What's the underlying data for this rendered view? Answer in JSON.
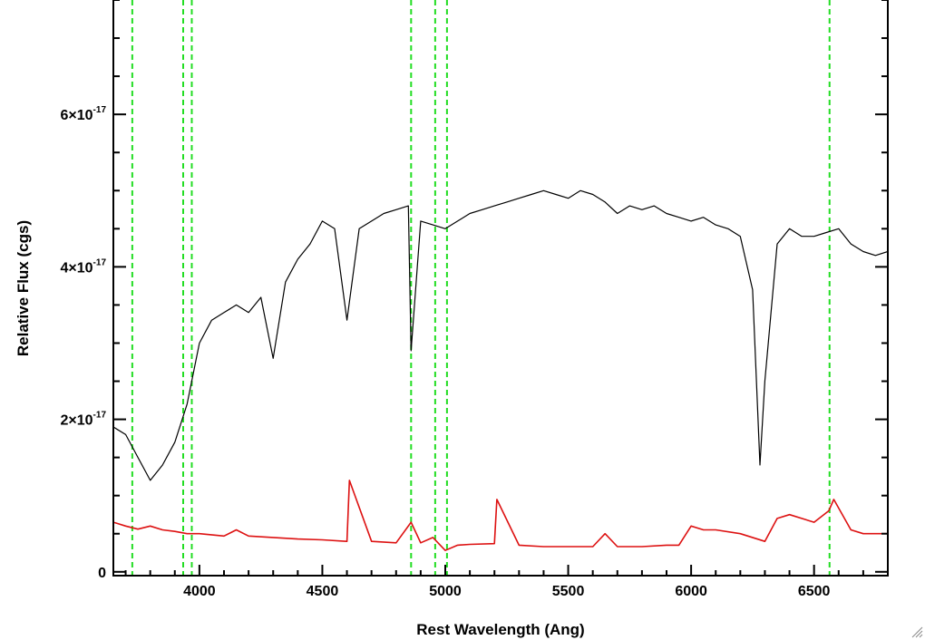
{
  "chart_data": {
    "type": "line",
    "title": "",
    "xlabel": "Rest Wavelength (Ang)",
    "ylabel": "Relative Flux (cgs)",
    "xlim": [
      3650,
      6800
    ],
    "ylim": [
      -5e-19,
      7.5e-17
    ],
    "grid": false,
    "legend": "none",
    "x_ticks": [
      {
        "value": 4000,
        "label": "4000"
      },
      {
        "value": 4500,
        "label": "4500"
      },
      {
        "value": 5000,
        "label": "5000"
      },
      {
        "value": 5500,
        "label": "5500"
      },
      {
        "value": 6000,
        "label": "6000"
      },
      {
        "value": 6500,
        "label": "6500"
      }
    ],
    "y_ticks": [
      {
        "value": 0,
        "mantissa": "0",
        "exponent": ""
      },
      {
        "value": 2e-17,
        "mantissa": "2×10",
        "exponent": "-17"
      },
      {
        "value": 4e-17,
        "mantissa": "4×10",
        "exponent": "-17"
      },
      {
        "value": 6e-17,
        "mantissa": "6×10",
        "exponent": "-17"
      }
    ],
    "reference_lines": {
      "color": "#22dd22",
      "x": [
        3727,
        3934,
        3969,
        4861,
        4959,
        5007,
        6563
      ]
    },
    "series": [
      {
        "color": "#000000",
        "x": [
          3650,
          3700,
          3750,
          3800,
          3850,
          3900,
          3950,
          4000,
          4050,
          4100,
          4150,
          4200,
          4250,
          4300,
          4350,
          4400,
          4450,
          4500,
          4550,
          4600,
          4650,
          4700,
          4750,
          4800,
          4850,
          4861,
          4900,
          4950,
          5000,
          5050,
          5100,
          5150,
          5200,
          5250,
          5300,
          5350,
          5400,
          5450,
          5500,
          5550,
          5600,
          5650,
          5700,
          5750,
          5800,
          5850,
          5900,
          5950,
          6000,
          6050,
          6100,
          6150,
          6200,
          6250,
          6280,
          6300,
          6350,
          6400,
          6450,
          6500,
          6550,
          6600,
          6650,
          6700,
          6750,
          6800
        ],
        "y": [
          1.9e-17,
          1.8e-17,
          1.5e-17,
          1.2e-17,
          1.4e-17,
          1.7e-17,
          2.2e-17,
          3e-17,
          3.3e-17,
          3.4e-17,
          3.5e-17,
          3.4e-17,
          3.6e-17,
          2.8e-17,
          3.8e-17,
          4.1e-17,
          4.3e-17,
          4.6e-17,
          4.5e-17,
          3.3e-17,
          4.5e-17,
          4.6e-17,
          4.7e-17,
          4.75e-17,
          4.8e-17,
          2.9e-17,
          4.6e-17,
          4.55e-17,
          4.5e-17,
          4.6e-17,
          4.7e-17,
          4.75e-17,
          4.8e-17,
          4.85e-17,
          4.9e-17,
          4.95e-17,
          5e-17,
          4.95e-17,
          4.9e-17,
          5e-17,
          4.95e-17,
          4.85e-17,
          4.7e-17,
          4.8e-17,
          4.75e-17,
          4.8e-17,
          4.7e-17,
          4.65e-17,
          4.6e-17,
          4.65e-17,
          4.55e-17,
          4.5e-17,
          4.4e-17,
          3.7e-17,
          1.4e-17,
          2.5e-17,
          4.3e-17,
          4.5e-17,
          4.4e-17,
          4.4e-17,
          4.45e-17,
          4.5e-17,
          4.3e-17,
          4.2e-17,
          4.15e-17,
          4.2e-17
        ]
      },
      {
        "color": "#dd1111",
        "x": [
          3650,
          3700,
          3750,
          3800,
          3850,
          3900,
          3950,
          4000,
          4100,
          4150,
          4200,
          4300,
          4400,
          4500,
          4600,
          4610,
          4700,
          4800,
          4861,
          4900,
          4950,
          5000,
          5050,
          5100,
          5200,
          5210,
          5300,
          5400,
          5500,
          5600,
          5650,
          5700,
          5800,
          5900,
          5950,
          6000,
          6050,
          6100,
          6200,
          6300,
          6350,
          6400,
          6500,
          6560,
          6580,
          6650,
          6700,
          6800
        ],
        "y": [
          6.5e-18,
          6e-18,
          5.6e-18,
          6e-18,
          5.5e-18,
          5.3e-18,
          5e-18,
          5e-18,
          4.7e-18,
          5.5e-18,
          4.7e-18,
          4.5e-18,
          4.3e-18,
          4.2e-18,
          4e-18,
          1.2e-17,
          4e-18,
          3.8e-18,
          6.5e-18,
          3.8e-18,
          4.5e-18,
          2.8e-18,
          3.5e-18,
          3.6e-18,
          3.7e-18,
          9.5e-18,
          3.5e-18,
          3.3e-18,
          3.3e-18,
          3.3e-18,
          5e-18,
          3.3e-18,
          3.3e-18,
          3.5e-18,
          3.5e-18,
          6e-18,
          5.5e-18,
          5.5e-18,
          5e-18,
          4e-18,
          7e-18,
          7.5e-18,
          6.5e-18,
          8e-18,
          9.5e-18,
          5.5e-18,
          5e-18,
          5e-18
        ]
      }
    ]
  }
}
